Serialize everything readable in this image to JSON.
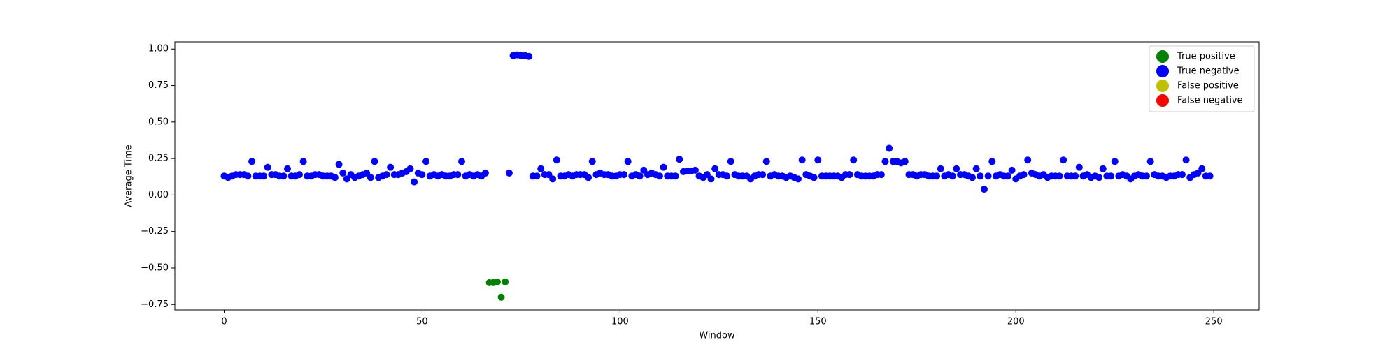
{
  "chart_data": {
    "type": "scatter",
    "xlabel": "Window",
    "ylabel": "Average Time",
    "xlim": [
      -12.45,
      261.45
    ],
    "ylim": [
      -0.787,
      1.049
    ],
    "xticks": [
      0,
      50,
      100,
      150,
      200,
      250
    ],
    "yticks": [
      {
        "value": -0.75,
        "label": "−0.75"
      },
      {
        "value": -0.5,
        "label": "−0.50"
      },
      {
        "value": -0.25,
        "label": "−0.25"
      },
      {
        "value": 0,
        "label": "0.00"
      },
      {
        "value": 0.25,
        "label": "0.25"
      },
      {
        "value": 0.5,
        "label": "0.50"
      },
      {
        "value": 0.75,
        "label": "0.75"
      },
      {
        "value": 1.0,
        "label": "1.00"
      }
    ],
    "grid": false,
    "legend": "upper right",
    "series": [
      {
        "name": "True positive",
        "color": "#008000",
        "x": [
          67,
          68,
          69,
          70,
          71
        ],
        "values": [
          -0.6,
          -0.6,
          -0.595,
          -0.7,
          -0.595
        ]
      },
      {
        "name": "True negative",
        "color": "#0000ff",
        "x": [
          0,
          1,
          2,
          3,
          4,
          5,
          6,
          7,
          8,
          9,
          10,
          11,
          12,
          13,
          14,
          15,
          16,
          17,
          18,
          19,
          20,
          21,
          22,
          23,
          24,
          25,
          26,
          27,
          28,
          29,
          30,
          31,
          32,
          33,
          34,
          35,
          36,
          37,
          38,
          39,
          40,
          41,
          42,
          43,
          44,
          45,
          46,
          47,
          48,
          49,
          50,
          51,
          52,
          53,
          54,
          55,
          56,
          57,
          58,
          59,
          60,
          61,
          62,
          63,
          64,
          65,
          66,
          72,
          73,
          74,
          75,
          76,
          77,
          78,
          79,
          80,
          81,
          82,
          83,
          84,
          85,
          86,
          87,
          88,
          89,
          90,
          91,
          92,
          93,
          94,
          95,
          96,
          97,
          98,
          99,
          100,
          101,
          102,
          103,
          104,
          105,
          106,
          107,
          108,
          109,
          110,
          111,
          112,
          113,
          114,
          115,
          116,
          117,
          118,
          119,
          120,
          121,
          122,
          123,
          124,
          125,
          126,
          127,
          128,
          129,
          130,
          131,
          132,
          133,
          134,
          135,
          136,
          137,
          138,
          139,
          140,
          141,
          142,
          143,
          144,
          145,
          146,
          147,
          148,
          149,
          150,
          151,
          152,
          153,
          154,
          155,
          156,
          157,
          158,
          159,
          160,
          161,
          162,
          163,
          164,
          165,
          166,
          167,
          168,
          169,
          170,
          171,
          172,
          173,
          174,
          175,
          176,
          177,
          178,
          179,
          180,
          181,
          182,
          183,
          184,
          185,
          186,
          187,
          188,
          189,
          190,
          191,
          192,
          193,
          194,
          195,
          196,
          197,
          198,
          199,
          200,
          201,
          202,
          203,
          204,
          205,
          206,
          207,
          208,
          209,
          210,
          211,
          212,
          213,
          214,
          215,
          216,
          217,
          218,
          219,
          220,
          221,
          222,
          223,
          224,
          225,
          226,
          227,
          228,
          229,
          230,
          231,
          232,
          233,
          234,
          235,
          236,
          237,
          238,
          239,
          240,
          241,
          242,
          243,
          244,
          245,
          246,
          247,
          248,
          249
        ],
        "values": [
          0.13,
          0.12,
          0.13,
          0.14,
          0.14,
          0.14,
          0.13,
          0.23,
          0.13,
          0.13,
          0.13,
          0.19,
          0.14,
          0.14,
          0.13,
          0.13,
          0.18,
          0.13,
          0.13,
          0.14,
          0.23,
          0.13,
          0.13,
          0.14,
          0.14,
          0.13,
          0.13,
          0.13,
          0.12,
          0.21,
          0.15,
          0.11,
          0.14,
          0.12,
          0.13,
          0.14,
          0.15,
          0.12,
          0.23,
          0.12,
          0.13,
          0.14,
          0.19,
          0.14,
          0.14,
          0.15,
          0.16,
          0.18,
          0.09,
          0.15,
          0.14,
          0.23,
          0.13,
          0.14,
          0.13,
          0.14,
          0.13,
          0.13,
          0.14,
          0.14,
          0.23,
          0.13,
          0.14,
          0.13,
          0.14,
          0.13,
          0.15,
          0.15,
          0.955,
          0.96,
          0.955,
          0.955,
          0.95,
          0.13,
          0.13,
          0.18,
          0.14,
          0.14,
          0.11,
          0.24,
          0.13,
          0.13,
          0.14,
          0.13,
          0.14,
          0.14,
          0.14,
          0.12,
          0.23,
          0.14,
          0.15,
          0.14,
          0.14,
          0.13,
          0.13,
          0.14,
          0.14,
          0.23,
          0.13,
          0.14,
          0.13,
          0.17,
          0.14,
          0.15,
          0.14,
          0.13,
          0.19,
          0.13,
          0.13,
          0.13,
          0.245,
          0.16,
          0.165,
          0.165,
          0.17,
          0.13,
          0.12,
          0.14,
          0.11,
          0.18,
          0.14,
          0.14,
          0.13,
          0.23,
          0.14,
          0.13,
          0.13,
          0.13,
          0.11,
          0.13,
          0.14,
          0.14,
          0.23,
          0.13,
          0.14,
          0.13,
          0.13,
          0.12,
          0.13,
          0.12,
          0.11,
          0.24,
          0.14,
          0.13,
          0.12,
          0.24,
          0.13,
          0.13,
          0.13,
          0.13,
          0.13,
          0.12,
          0.14,
          0.14,
          0.24,
          0.14,
          0.13,
          0.13,
          0.13,
          0.13,
          0.14,
          0.14,
          0.23,
          0.32,
          0.23,
          0.23,
          0.22,
          0.23,
          0.14,
          0.14,
          0.13,
          0.14,
          0.14,
          0.13,
          0.13,
          0.13,
          0.18,
          0.13,
          0.14,
          0.13,
          0.18,
          0.14,
          0.14,
          0.13,
          0.12,
          0.18,
          0.13,
          0.04,
          0.13,
          0.23,
          0.13,
          0.14,
          0.13,
          0.13,
          0.17,
          0.11,
          0.13,
          0.14,
          0.24,
          0.15,
          0.14,
          0.13,
          0.14,
          0.12,
          0.13,
          0.13,
          0.13,
          0.24,
          0.13,
          0.13,
          0.13,
          0.19,
          0.13,
          0.14,
          0.12,
          0.13,
          0.12,
          0.18,
          0.13,
          0.13,
          0.23,
          0.13,
          0.14,
          0.13,
          0.11,
          0.13,
          0.14,
          0.13,
          0.13,
          0.23,
          0.14,
          0.13,
          0.13,
          0.12,
          0.13,
          0.13,
          0.14,
          0.14,
          0.24,
          0.12,
          0.14,
          0.15,
          0.18,
          0.13,
          0.13
        ]
      },
      {
        "name": "False positive",
        "color": "#bfbf00",
        "x": [],
        "values": []
      },
      {
        "name": "False negative",
        "color": "#ff0000",
        "x": [],
        "values": []
      }
    ]
  }
}
